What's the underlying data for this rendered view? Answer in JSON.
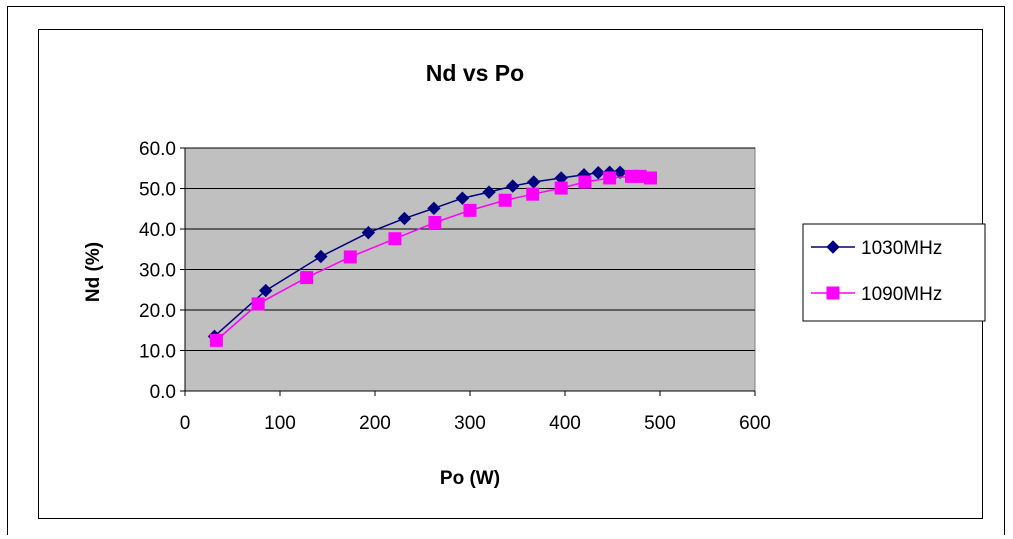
{
  "chart_data": {
    "type": "line",
    "title": "Nd vs Po",
    "xlabel": "Po (W)",
    "ylabel": "Nd (%)",
    "xlim": [
      0,
      600
    ],
    "ylim": [
      0,
      60
    ],
    "xticks": [
      "0",
      "100",
      "200",
      "300",
      "400",
      "500",
      "600"
    ],
    "yticks": [
      "0.0",
      "10.0",
      "20.0",
      "30.0",
      "40.0",
      "50.0",
      "60.0"
    ],
    "grid": "horizontal",
    "plot_background": "#c0c0c0",
    "legend_position": "right",
    "series": [
      {
        "name": "1030MHz",
        "color": "#000080",
        "marker": "diamond",
        "x": [
          31,
          85,
          143,
          193,
          231,
          262,
          292,
          320,
          345,
          367,
          396,
          420,
          435,
          447,
          458
        ],
        "y": [
          13.5,
          24.8,
          33.2,
          39.1,
          42.6,
          45.1,
          47.6,
          49.1,
          50.6,
          51.6,
          52.6,
          53.4,
          53.9,
          54.0,
          54.0
        ]
      },
      {
        "name": "1090MHz",
        "color": "#ff00ff",
        "marker": "square",
        "x": [
          33,
          77,
          128,
          174,
          221,
          263,
          300,
          337,
          366,
          396,
          421,
          447,
          470,
          479,
          490
        ],
        "y": [
          12.5,
          21.5,
          28.0,
          33.1,
          37.6,
          41.6,
          44.6,
          47.1,
          48.6,
          50.1,
          51.6,
          52.6,
          53.0,
          53.0,
          52.6
        ]
      }
    ]
  }
}
